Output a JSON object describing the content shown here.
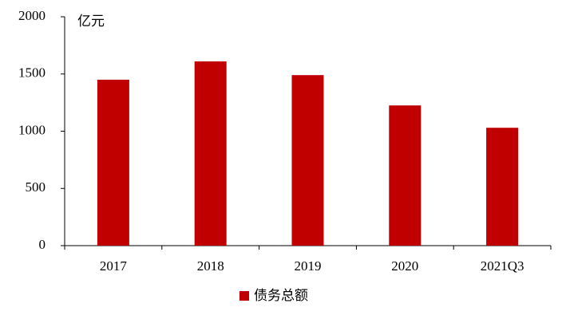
{
  "chart_data": {
    "type": "bar",
    "unit_label": "亿元",
    "categories": [
      "2017",
      "2018",
      "2019",
      "2020",
      "2021Q3"
    ],
    "series": [
      {
        "name": "债务总额",
        "color": "#c00000",
        "values": [
          1450,
          1610,
          1490,
          1225,
          1030
        ]
      }
    ],
    "ylim": [
      0,
      2000
    ],
    "yticks": [
      0,
      500,
      1000,
      1500,
      2000
    ],
    "grid": false,
    "legend": "bottom"
  }
}
